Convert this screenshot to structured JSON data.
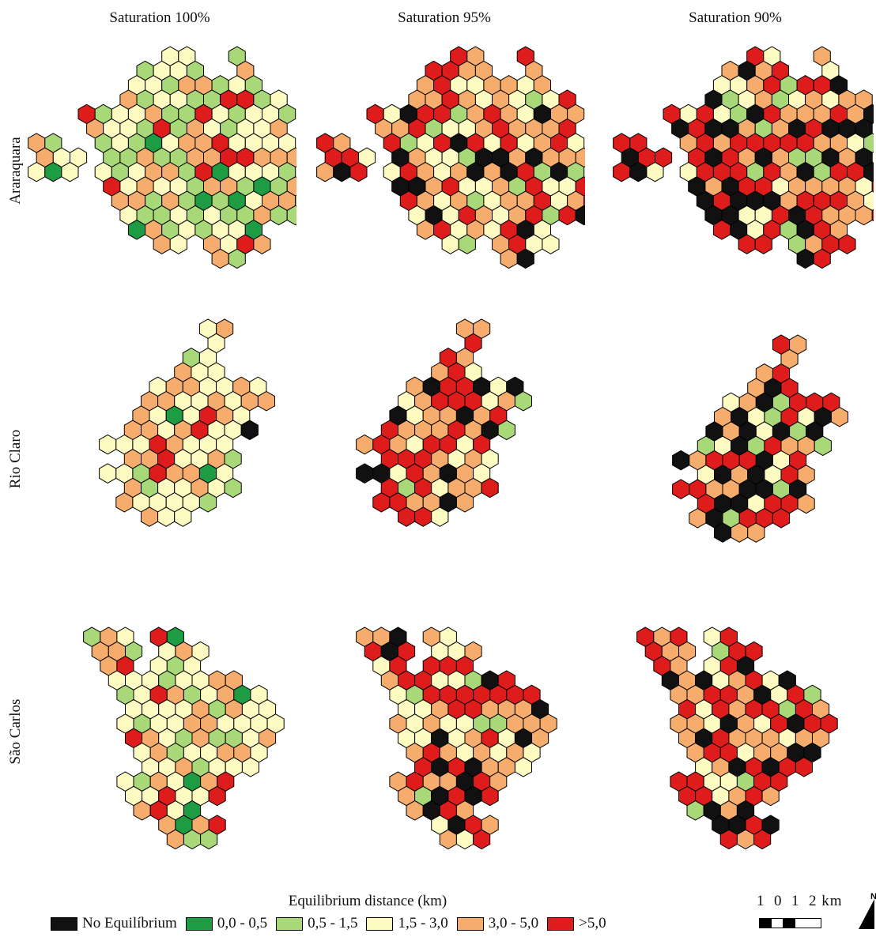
{
  "columns": [
    "Saturation 100%",
    "Saturation 95%",
    "Saturation 90%"
  ],
  "rows": [
    "Araraquara",
    "Rio Claro",
    "São Carlos"
  ],
  "legend": {
    "title": "Equilibrium distance (km)",
    "items": [
      {
        "label": "No Equilíbrium",
        "color": "#111111"
      },
      {
        "label": "0,0 - 0,5",
        "color": "#1e9c44"
      },
      {
        "label": "0,5 - 1,5",
        "color": "#a8d878"
      },
      {
        "label": "1,5 - 3,0",
        "color": "#fdfac2"
      },
      {
        "label": "3,0 - 5,0",
        "color": "#f6ac6c"
      },
      {
        "label": ">5,0",
        "color": "#de1c1c"
      }
    ]
  },
  "scale": {
    "label": "1  0  1  2 km"
  },
  "north": {
    "label": "N"
  }
}
